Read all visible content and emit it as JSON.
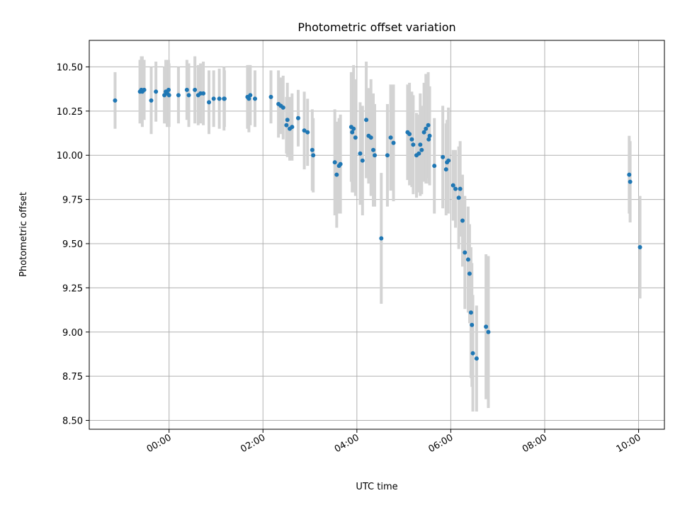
{
  "chart_data": {
    "type": "scatter",
    "title": "Photometric offset variation",
    "xlabel": "UTC time",
    "ylabel": "Photometric offset",
    "x_unit": "hours since 00:00 UTC",
    "xlim": [
      -1.7,
      10.55
    ],
    "ylim": [
      8.45,
      10.65
    ],
    "grid": true,
    "x_ticks": [
      0,
      2,
      4,
      6,
      8,
      10
    ],
    "x_tick_labels": [
      "00:00",
      "02:00",
      "04:00",
      "06:00",
      "08:00",
      "10:00"
    ],
    "y_ticks": [
      8.5,
      8.75,
      9.0,
      9.25,
      9.5,
      9.75,
      10.0,
      10.25,
      10.5
    ],
    "y_tick_labels": [
      "8.50",
      "8.75",
      "9.00",
      "9.25",
      "9.50",
      "9.75",
      "10.00",
      "10.25",
      "10.50"
    ],
    "colors": {
      "point": "#1f77b4",
      "errorbar": "#d3d3d3",
      "grid": "#b0b0b0",
      "axes": "#000000"
    },
    "series": [
      {
        "name": "Photometric offset",
        "x": [
          -1.15,
          -0.62,
          -0.59,
          -0.57,
          -0.53,
          -0.38,
          -0.28,
          -0.1,
          -0.07,
          -0.04,
          -0.01,
          0.0,
          0.2,
          0.38,
          0.42,
          0.55,
          0.62,
          0.67,
          0.73,
          0.85,
          0.95,
          1.07,
          1.17,
          1.18,
          1.67,
          1.7,
          1.73,
          1.83,
          2.17,
          2.33,
          2.38,
          2.43,
          2.5,
          2.52,
          2.57,
          2.62,
          2.75,
          2.88,
          2.95,
          3.05,
          3.07,
          3.53,
          3.57,
          3.62,
          3.65,
          3.88,
          3.9,
          3.93,
          3.97,
          4.07,
          4.12,
          4.2,
          4.25,
          4.3,
          4.35,
          4.38,
          4.52,
          4.65,
          4.72,
          4.78,
          5.08,
          5.12,
          5.17,
          5.2,
          5.27,
          5.32,
          5.35,
          5.38,
          5.43,
          5.47,
          5.52,
          5.53,
          5.55,
          5.65,
          5.83,
          5.9,
          5.92,
          5.95,
          6.05,
          6.1,
          6.17,
          6.2,
          6.25,
          6.3,
          6.37,
          6.4,
          6.43,
          6.45,
          6.47,
          6.55,
          6.75,
          6.8,
          9.8,
          9.82,
          10.03
        ],
        "y": [
          10.31,
          10.36,
          10.37,
          10.36,
          10.37,
          10.31,
          10.36,
          10.34,
          10.36,
          10.35,
          10.37,
          10.34,
          10.34,
          10.37,
          10.34,
          10.37,
          10.34,
          10.35,
          10.35,
          10.3,
          10.32,
          10.32,
          10.32,
          10.32,
          10.33,
          10.32,
          10.34,
          10.32,
          10.33,
          10.29,
          10.28,
          10.27,
          10.17,
          10.2,
          10.15,
          10.16,
          10.21,
          10.14,
          10.13,
          10.03,
          10.0,
          9.96,
          9.89,
          9.94,
          9.95,
          10.16,
          10.13,
          10.15,
          10.1,
          10.01,
          9.97,
          10.2,
          10.11,
          10.1,
          10.03,
          10.0,
          9.53,
          10.0,
          10.1,
          10.07,
          10.13,
          10.12,
          10.09,
          10.06,
          10.0,
          10.01,
          10.06,
          10.03,
          10.13,
          10.15,
          10.17,
          10.09,
          10.11,
          9.94,
          9.99,
          9.92,
          9.96,
          9.97,
          9.83,
          9.81,
          9.76,
          9.81,
          9.63,
          9.45,
          9.41,
          9.33,
          9.11,
          9.04,
          8.88,
          8.85,
          9.03,
          9.0,
          9.89,
          9.85,
          9.48
        ],
        "yerr": [
          0.16,
          0.18,
          0.19,
          0.2,
          0.17,
          0.19,
          0.17,
          0.16,
          0.18,
          0.19,
          0.17,
          0.18,
          0.16,
          0.17,
          0.18,
          0.19,
          0.17,
          0.17,
          0.18,
          0.18,
          0.16,
          0.17,
          0.18,
          0.16,
          0.18,
          0.19,
          0.17,
          0.16,
          0.15,
          0.19,
          0.16,
          0.18,
          0.16,
          0.21,
          0.18,
          0.19,
          0.16,
          0.22,
          0.19,
          0.23,
          0.21,
          0.3,
          0.3,
          0.27,
          0.28,
          0.31,
          0.34,
          0.36,
          0.33,
          0.29,
          0.31,
          0.33,
          0.27,
          0.33,
          0.32,
          0.29,
          0.37,
          0.29,
          0.3,
          0.33,
          0.27,
          0.29,
          0.27,
          0.28,
          0.24,
          0.22,
          0.29,
          0.25,
          0.28,
          0.31,
          0.3,
          0.25,
          0.28,
          0.27,
          0.29,
          0.26,
          0.24,
          0.3,
          0.2,
          0.22,
          0.29,
          0.27,
          0.26,
          0.32,
          0.3,
          0.28,
          0.37,
          0.35,
          0.33,
          0.3,
          0.41,
          0.43,
          0.22,
          0.23,
          0.29
        ]
      }
    ]
  }
}
